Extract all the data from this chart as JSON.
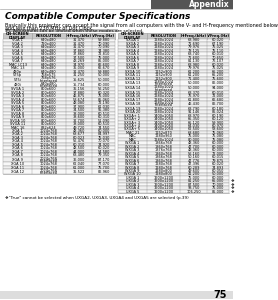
{
  "title": "Compatible Computer Specifications",
  "appendix_label": "Appendix",
  "page_number": "75",
  "body_text1": "Basically this projector can accept the signal from all computers with the V- and H-Frequency mentioned below",
  "body_text2": "and less than 230 MHz of Dot Clock.",
  "shaded_text": "PC Adjustment can be limited when these modes are selected.",
  "footnote": "❖\"True\" cannot be selected when UXGA2, UXGA3, UXGA4 and UXGA5 are selected (p.39)",
  "col_headers": [
    "ON-SCREEN\nDISPLAY",
    "RESOLUTION",
    "H-Freq.(kHz)",
    "V-Freq.(Hz)"
  ],
  "left_table": [
    [
      "VGA 1",
      "640x480",
      "31.470",
      "59.880",
      ""
    ],
    [
      "VGA 2",
      "720x400",
      "31.470",
      "70.090",
      ""
    ],
    [
      "VGA 3",
      "640x400",
      "31.470",
      "70.090",
      ""
    ],
    [
      "VGA 4",
      "640x480",
      "37.860",
      "74.380",
      ""
    ],
    [
      "VGA 5",
      "640x480",
      "37.860",
      "72.810",
      ""
    ],
    [
      "VGA 6",
      "640x480",
      "37.500",
      "75.000",
      ""
    ],
    [
      "VGA 7",
      "640x480",
      "43.269",
      "85.000",
      ""
    ],
    [
      "MAC LC13",
      "640x480",
      "34.970",
      "66.600",
      ""
    ],
    [
      "MAC 13",
      "640x480",
      "35.000",
      "66.670",
      ""
    ],
    [
      "480p",
      "640x480",
      "31.470",
      "59.880",
      ""
    ],
    [
      "575p",
      "768x575",
      "31.250",
      "50.000",
      ""
    ],
    [
      "575i",
      "768x576\nInterlaced",
      "15.625",
      "50.000",
      ""
    ],
    [
      "480i",
      "640x480\nInterlaced",
      "15.734",
      "60.000",
      ""
    ],
    [
      "SVGA 1",
      "800x600",
      "35.156",
      "56.250",
      ""
    ],
    [
      "SVGA 2",
      "800x600",
      "37.880",
      "60.320",
      ""
    ],
    [
      "SVGA 3",
      "800x600",
      "46.875",
      "75.000",
      ""
    ],
    [
      "SVGA 4",
      "800x600",
      "53.674",
      "85.060",
      ""
    ],
    [
      "SVGA 5",
      "800x600",
      "48.080",
      "72.190",
      ""
    ],
    [
      "SVGA 6",
      "800x600",
      "37.900",
      "61.030",
      ""
    ],
    [
      "SVGA 7",
      "800x600",
      "34.500",
      "55.380",
      ""
    ],
    [
      "SVGA 8",
      "800x600",
      "38.000",
      "60.510",
      ""
    ],
    [
      "SVGA 9",
      "800x600",
      "38.600",
      "60.310",
      ""
    ],
    [
      "SVGA 10",
      "800x600",
      "32.700",
      "51.090",
      ""
    ],
    [
      "SVGA 11",
      "800x600",
      "38.000",
      "60.510",
      ""
    ],
    [
      "MAC 16",
      "832x624",
      "49.720",
      "74.550",
      ""
    ],
    [
      "XGA 1",
      "1024x768",
      "48.360",
      "60.000",
      ""
    ],
    [
      "XGA 2",
      "1024x768",
      "68.677",
      "84.997",
      ""
    ],
    [
      "XGA 3",
      "1024x768",
      "60.023",
      "75.030",
      ""
    ],
    [
      "XGA 4",
      "1024x768",
      "56.476",
      "70.070",
      ""
    ],
    [
      "XGA 5",
      "1024x768",
      "60.310",
      "74.920",
      ""
    ],
    [
      "XGA 6",
      "1024x768",
      "48.500",
      "60.020",
      ""
    ],
    [
      "XGA 7",
      "1024x768",
      "44.000",
      "54.580",
      ""
    ],
    [
      "XGA 8",
      "1024x768",
      "63.480",
      "79.350",
      ""
    ],
    [
      "XGA 9",
      "1024x768\nInterlaced",
      "36.000",
      "87.170",
      ""
    ],
    [
      "XGA 10",
      "1024x768",
      "62.040",
      "77.070",
      ""
    ],
    [
      "XGA 11",
      "1024x768",
      "61.000",
      "75.700",
      ""
    ],
    [
      "XGA 12",
      "1024x768\nInterlaced",
      "35.522",
      "86.960",
      ""
    ]
  ],
  "right_table": [
    [
      "SXGA 1",
      "1280x1024",
      "63.980",
      "60.020",
      ""
    ],
    [
      "SXGA 2",
      "1280x1024",
      "71.690",
      "67.190",
      ""
    ],
    [
      "SXGA 3",
      "1280x1024",
      "79.976",
      "75.025",
      ""
    ],
    [
      "SXGA 4",
      "1280x1024",
      "78.125",
      "75.110",
      ""
    ],
    [
      "SXGA 5",
      "1280x1024",
      "63.740",
      "60.010",
      ""
    ],
    [
      "SXGA 6",
      "1280x1024",
      "71.600",
      "70.650",
      ""
    ],
    [
      "SXGA 7",
      "1280x1024",
      "81.130",
      "76.107",
      ""
    ],
    [
      "SXGA 8",
      "1280x1024",
      "63.980",
      "60.020",
      ""
    ],
    [
      "SXGA 9",
      "1280x1024",
      "79.976",
      "75.025",
      ""
    ],
    [
      "SXGA 10",
      "1152x900",
      "61.200",
      "65.200",
      ""
    ],
    [
      "SXGA 11",
      "1152x900",
      "61.200",
      "65.200",
      ""
    ],
    [
      "SXGA 12",
      "1152x900",
      "71.400",
      "75.600",
      ""
    ],
    [
      "SXGA 13",
      "1280x1024\nInterlaced",
      "50.000",
      "86.000",
      ""
    ],
    [
      "SXGA 14",
      "1280x1024\nInterlaced",
      "50.000",
      "94.000",
      ""
    ],
    [
      "SXGA 15",
      "1280x1024",
      "63.370",
      "60.010",
      ""
    ],
    [
      "SXGA 16",
      "1280x1024",
      "76.970",
      "72.000",
      ""
    ],
    [
      "SXGA 17",
      "1280x1024",
      "61.800",
      "66.680",
      ""
    ],
    [
      "SXGA 18",
      "1280x1024\nInterlaced",
      "46.430",
      "86.700",
      ""
    ],
    [
      "SXGA 19",
      "1280x1024",
      "63.790",
      "60.180",
      ""
    ],
    [
      "SXGA 20",
      "1280x1024",
      "91.146",
      "85.024",
      ""
    ],
    [
      "SXGA+ 1",
      "1400x1050",
      "63.970",
      "60.190",
      ""
    ],
    [
      "SXGA+ 2",
      "1400x1050",
      "65.350",
      "60.120",
      ""
    ],
    [
      "SXGA+ 3",
      "1400x1050",
      "65.120",
      "59.900",
      ""
    ],
    [
      "SXGA+ 4",
      "1400x1050",
      "64.030",
      "60.970",
      ""
    ],
    [
      "SXGA+ 5",
      "1400x1050",
      "62.500",
      "58.600",
      ""
    ],
    [
      "MAC 21",
      "1152x870",
      "68.680",
      "75.060",
      ""
    ],
    [
      "MAC",
      "1280x960",
      "75.000",
      "75.080",
      ""
    ],
    [
      "MAC",
      "1280x1024",
      "80.000",
      "75.080",
      ""
    ],
    [
      "WXGA 1",
      "1366x768",
      "48.360",
      "60.000",
      ""
    ],
    [
      "WXGA 2",
      "1360x768",
      "47.700",
      "60.000",
      ""
    ],
    [
      "WXGA 3",
      "1376x768",
      "48.360",
      "60.000",
      ""
    ],
    [
      "WXGA 4",
      "1360x768",
      "56.160",
      "72.000",
      ""
    ],
    [
      "WXGA 5",
      "1366x768",
      "50.160",
      "60.015",
      ""
    ],
    [
      "WXGA 6",
      "1360x768",
      "47.776",
      "79.875",
      ""
    ],
    [
      "WXGA 7",
      "1280x768",
      "47.396",
      "60.020",
      ""
    ],
    [
      "WXGA 8",
      "1280x768",
      "60.289",
      "74.893",
      ""
    ],
    [
      "WXGA 9",
      "1280x800",
      "49.600",
      "60.050",
      ""
    ],
    [
      "WXGA 10",
      "1280x800",
      "41.200",
      "50.000",
      ""
    ],
    [
      "UXGA 1",
      "1600x1200",
      "75.000",
      "60.000",
      ""
    ],
    [
      "UXGA 2",
      "1600x1200",
      "81.250",
      "65.000",
      "*"
    ],
    [
      "UXGA 3",
      "1600x1200",
      "87.500",
      "70.000",
      "*"
    ],
    [
      "UXGA 4",
      "1600x1200",
      "93.750",
      "75.000",
      "*"
    ],
    [
      "UXGA 5",
      "1600x1200",
      "106.250",
      "85.000",
      "*"
    ]
  ],
  "bg_color": "#ffffff",
  "header_bg": "#c8c8c8",
  "table_line_color": "#999999",
  "appendix_bg": "#555555"
}
